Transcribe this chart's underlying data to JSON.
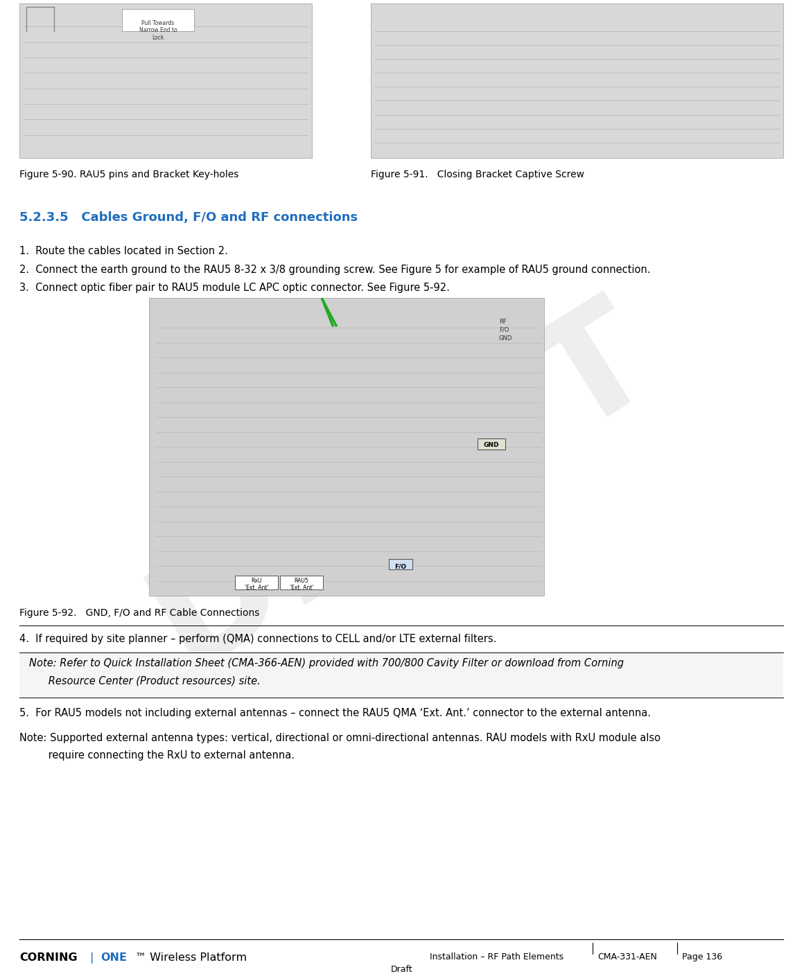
{
  "page_bg": "#ffffff",
  "fig_width": 11.6,
  "fig_height": 14.09,
  "dpi": 100,
  "body_text_color": "#000000",
  "body_fontsize": 10.5,
  "caption_fontsize": 10,
  "section_heading": "5.2.3.5   Cables Ground, F/O and RF connections",
  "section_heading_color": "#1F6EBF",
  "section_heading_fontsize": 13,
  "fig_caption_90": "Figure 5-90. RAU5 pins and Bracket Key-holes",
  "fig_caption_91": "Figure 5-91.   Closing Bracket Captive Screw",
  "fig_caption_92": "Figure 5-92.   GND, F/O and RF Cable Connections",
  "items": [
    "1.  Route the cables located in Section 2.",
    "2.  Connect the earth ground to the RAU5 8-32 x 3/8 grounding screw. See Figure 5 for example of RAU5 ground connection.",
    "3.  Connect optic fiber pair to RAU5 module LC APC optic connector. See Figure 5-92."
  ],
  "item4": "4.  If required by site planner – perform (QMA) connections to CELL and/or LTE external filters.",
  "note1_line1": "Note: Refer to Quick Installation Sheet (CMA-366-AEN) provided with 700/800 Cavity Filter or download from Corning",
  "note1_line2": "      Resource Center (Product resources) site.",
  "item5": "5.  For RAU5 models not including external antennas – connect the RAU5 QMA ‘Ext. Ant.’ connector to the external antenna.",
  "note2_line1": "Note: Supported external antenna types: vertical, directional or omni-directional antennas. RAU models with RxU module also",
  "note2_line2": "         require connecting the RxU to external antenna.",
  "footer_left_bold": "Installation – RF Path Elements",
  "footer_mid": "CMA-331-AEN",
  "footer_right": "Page 136",
  "footer_draft": "Draft",
  "watermark_text": "DRAFT",
  "watermark_color": "#c8c8c8",
  "watermark_alpha": 0.3
}
